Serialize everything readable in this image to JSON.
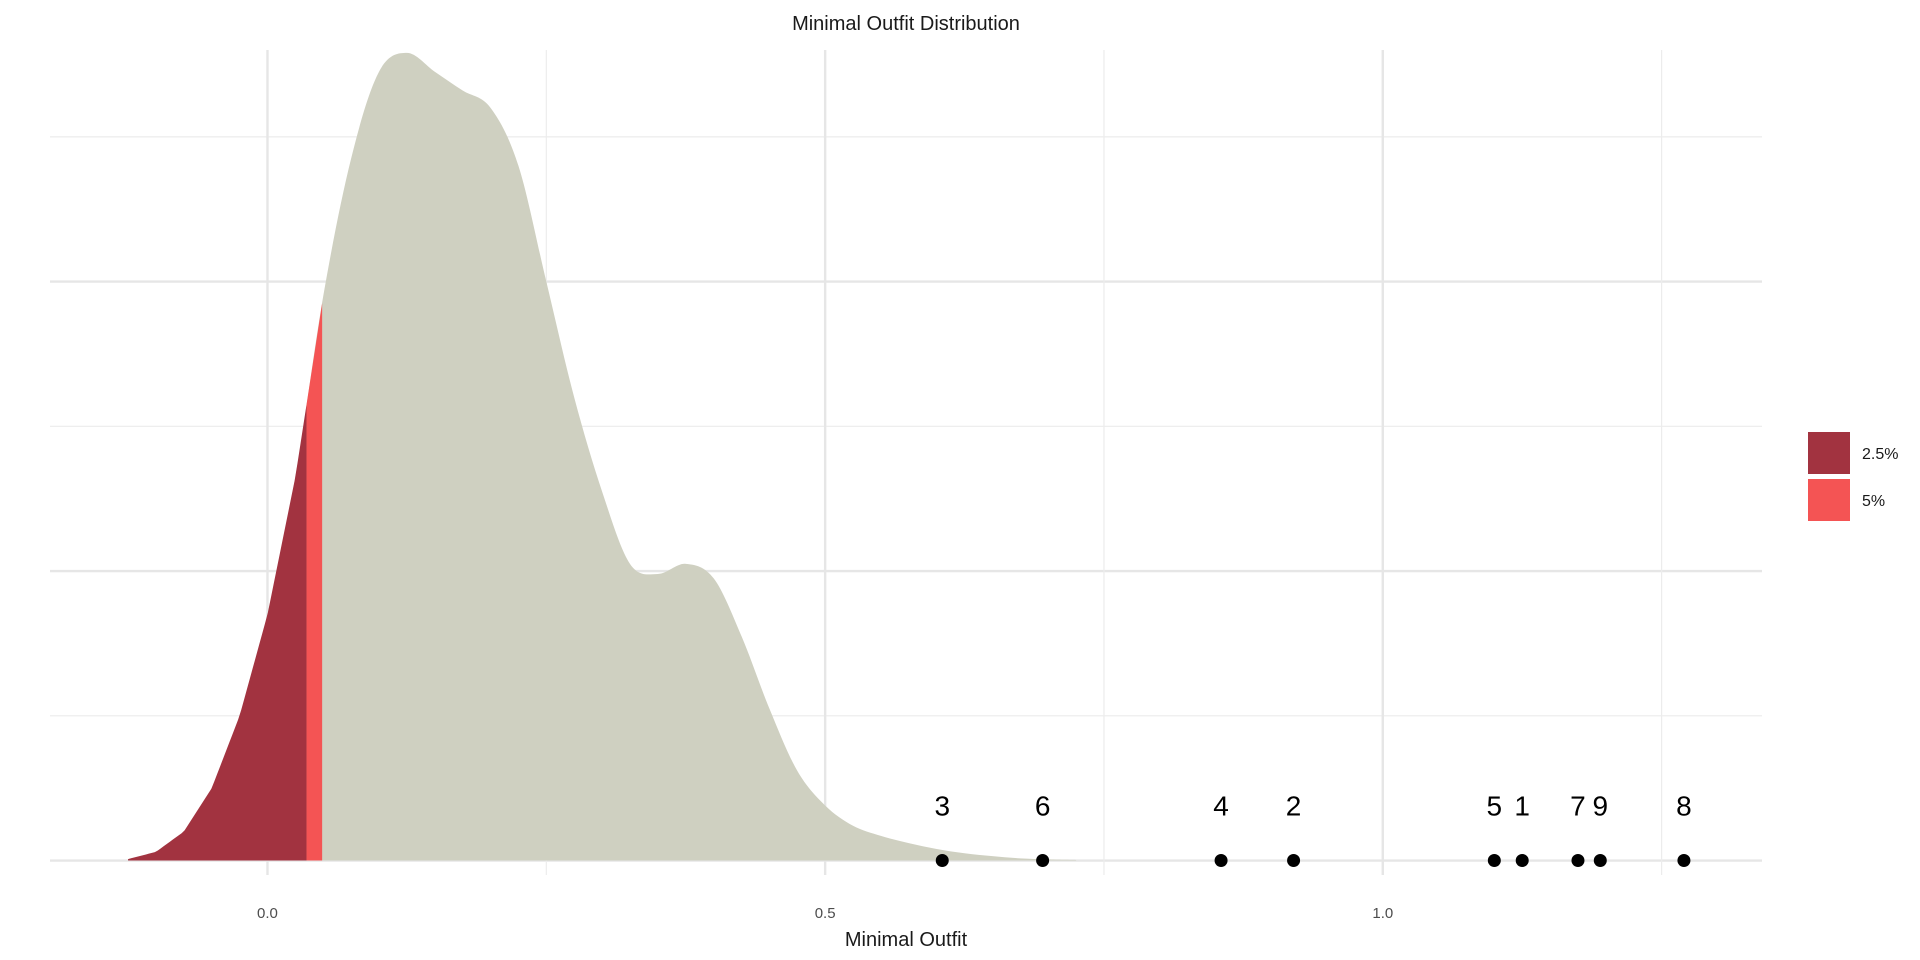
{
  "chart_data": {
    "type": "area",
    "title": "Minimal Outfit Distribution",
    "xlabel": "Minimal Outfit",
    "ylabel": "",
    "xlim": [
      -0.195,
      1.34
    ],
    "ylim": [
      -0.1,
      5.6
    ],
    "x_ticks": [
      0.0,
      0.5,
      1.0
    ],
    "x_tick_labels": [
      "0.0",
      "0.5",
      "1.0"
    ],
    "y_gridlines_major": [
      0,
      2,
      4
    ],
    "y_gridlines_minor": [
      1,
      3,
      5
    ],
    "grid": true,
    "density": {
      "x": [
        -0.125,
        -0.1,
        -0.075,
        -0.05,
        -0.025,
        0.0,
        0.025,
        0.05,
        0.075,
        0.1,
        0.125,
        0.15,
        0.175,
        0.2,
        0.225,
        0.25,
        0.275,
        0.3,
        0.325,
        0.35,
        0.375,
        0.4,
        0.425,
        0.45,
        0.475,
        0.5,
        0.525,
        0.55,
        0.575,
        0.6,
        0.625,
        0.65,
        0.675,
        0.7,
        0.725
      ],
      "y": [
        0.01,
        0.06,
        0.2,
        0.5,
        1.0,
        1.7,
        2.65,
        3.9,
        4.85,
        5.45,
        5.58,
        5.45,
        5.32,
        5.2,
        4.8,
        4.0,
        3.2,
        2.55,
        2.05,
        1.98,
        2.05,
        1.95,
        1.55,
        1.05,
        0.62,
        0.38,
        0.24,
        0.17,
        0.12,
        0.08,
        0.05,
        0.03,
        0.015,
        0.008,
        0.004
      ]
    },
    "shaded_regions": [
      {
        "name": "2.5%",
        "from": -0.125,
        "to": 0.035,
        "color": "#A23340"
      },
      {
        "name": "5%",
        "from": 0.035,
        "to": 0.049,
        "color": "#F45454"
      }
    ],
    "density_fill_color": "#CFD0C1",
    "legend": {
      "position": "right",
      "entries": [
        "2.5%",
        "5%"
      ]
    },
    "points": [
      {
        "label": "1",
        "x": 1.125
      },
      {
        "label": "2",
        "x": 0.92
      },
      {
        "label": "3",
        "x": 0.605
      },
      {
        "label": "4",
        "x": 0.855
      },
      {
        "label": "5",
        "x": 1.1
      },
      {
        "label": "6",
        "x": 0.695
      },
      {
        "label": "7",
        "x": 1.175
      },
      {
        "label": "8",
        "x": 1.27
      },
      {
        "label": "9",
        "x": 1.195
      }
    ],
    "point_y": 0
  }
}
